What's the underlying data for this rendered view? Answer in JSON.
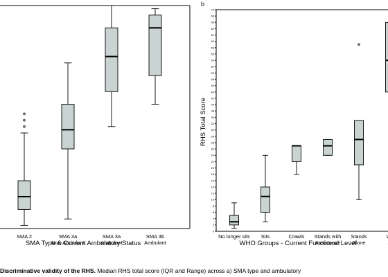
{
  "panel_b_letter": "b",
  "caption": {
    "bold": "Discriminative validity of the RHS.",
    "rest": " Median RHS total score (IQR and Range) across a) SMA type and ambulatory"
  },
  "chart_data": [
    {
      "type": "box",
      "xlabel": "SMA Type & Current Ambulatory Status",
      "ylabel": "",
      "categories": [
        [
          "SMA 2"
        ],
        [
          "SMA 3a",
          "Non-Ambulant"
        ],
        [
          "SMA 3a",
          "Ambulant"
        ],
        [
          "SMA 3b",
          "Ambulant"
        ]
      ],
      "ylim": [
        0,
        70
      ],
      "boxes": [
        {
          "min": 1,
          "q1": 6,
          "median": 10,
          "q3": 15,
          "max": 30,
          "outliers": [
            32,
            34,
            36
          ]
        },
        {
          "min": 3,
          "q1": 25,
          "median": 31,
          "q3": 39,
          "max": 52
        },
        {
          "min": 32,
          "q1": 43,
          "median": 54,
          "q3": 63,
          "max": 70
        },
        {
          "min": 39,
          "q1": 48,
          "median": 63,
          "q3": 67,
          "max": 69
        }
      ]
    },
    {
      "type": "box",
      "xlabel": "WHO Groups - Current Functional Level",
      "ylabel": "RHS Total Score",
      "categories": [
        [
          "No longer sits"
        ],
        [
          "Sits"
        ],
        [
          "Crawls"
        ],
        [
          "Stands with",
          "Assistance"
        ],
        [
          "Stands",
          "Alone"
        ],
        [
          "Wa",
          "Al"
        ]
      ],
      "ylim": [
        0,
        70
      ],
      "yticks": [
        0,
        2,
        4,
        6,
        8,
        10,
        12,
        14,
        16,
        18,
        20,
        22,
        24,
        26,
        28,
        30,
        32,
        34,
        36,
        38,
        40,
        42,
        44,
        46,
        48,
        50,
        52,
        54,
        56,
        58,
        60,
        62,
        64,
        66,
        68,
        70
      ],
      "boxes": [
        {
          "min": 1,
          "q1": 2,
          "median": 3,
          "q3": 5,
          "max": 9
        },
        {
          "min": 3,
          "q1": 6,
          "median": 11,
          "q3": 14,
          "max": 24
        },
        {
          "min": 18,
          "q1": 22,
          "median": 27,
          "q3": 27,
          "max": 27
        },
        {
          "min": 24,
          "q1": 24,
          "median": 27,
          "q3": 29,
          "max": 29
        },
        {
          "min": 10,
          "q1": 21,
          "median": 29,
          "q3": 35,
          "max": 35,
          "outliers": [
            59
          ]
        },
        {
          "min": 44,
          "q1": 44,
          "median": 54,
          "q3": 66,
          "max": 66
        }
      ]
    }
  ]
}
